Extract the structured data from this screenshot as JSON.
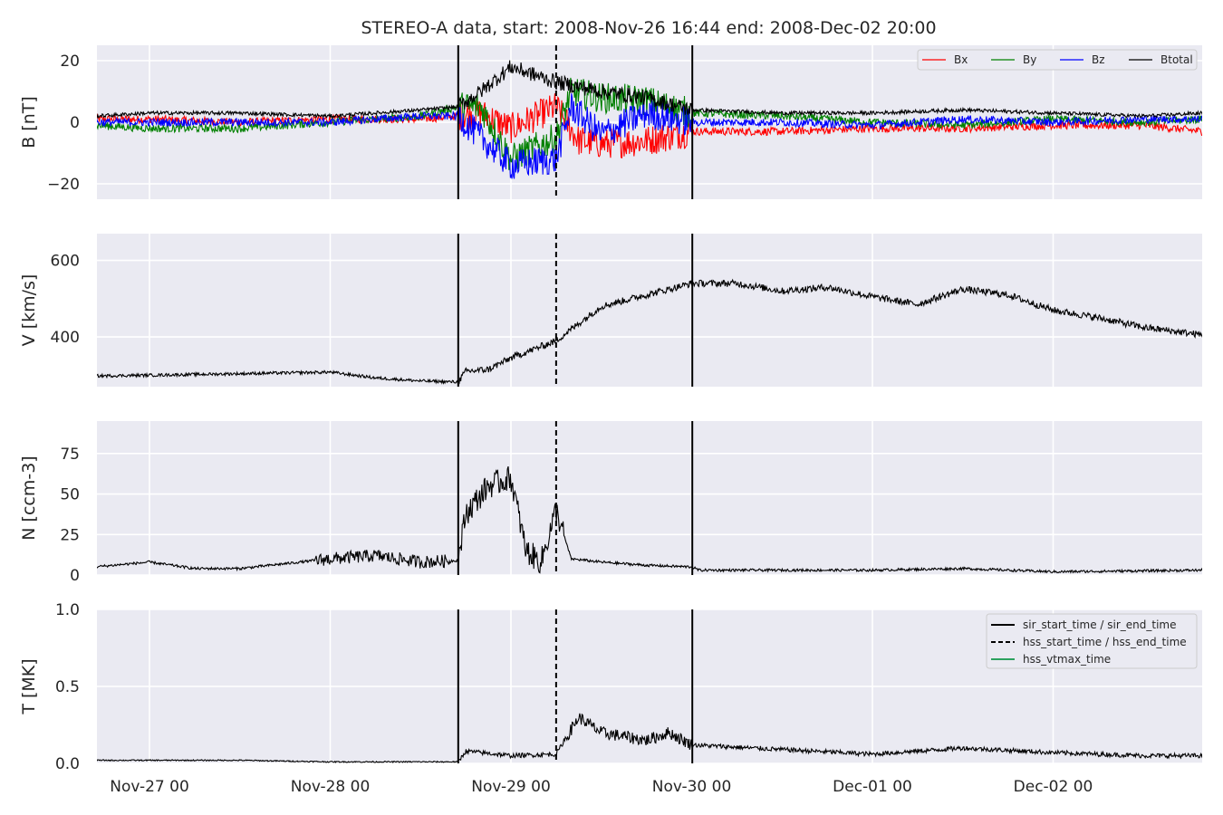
{
  "chart_data": {
    "type": "line",
    "title": "STEREO-A data, start: 2008-Nov-26 16:44  end: 2008-Dec-02 20:00",
    "time_range": [
      "2008-11-26 16:44",
      "2008-12-02 20:00"
    ],
    "x_tick_labels": [
      "Nov-27 00",
      "Nov-28 00",
      "Nov-29 00",
      "Nov-30 00",
      "Dec-01 00",
      "Dec-02 00"
    ],
    "x_tick_dates": [
      "2008-11-27 00:00",
      "2008-11-28 00:00",
      "2008-11-29 00:00",
      "2008-11-30 00:00",
      "2008-12-01 00:00",
      "2008-12-02 00:00"
    ],
    "event_lines": [
      {
        "label": "sir_start_time / sir_end_time",
        "style": "solid",
        "times": [
          "2008-11-28 17:00",
          "2008-11-30 00:05"
        ]
      },
      {
        "label": "hss_start_time / hss_end_time",
        "style": "dashed",
        "times": [
          "2008-11-29 06:00"
        ]
      },
      {
        "label": "hss_vtmax_time",
        "style": "solid",
        "color": "#2ca25f",
        "times": []
      }
    ],
    "panels": [
      {
        "ylabel": "B [nT]",
        "ylim": [
          -25,
          25
        ],
        "yticks": [
          20,
          0,
          -20
        ],
        "ytick_labels": [
          "20",
          "0",
          "−20"
        ],
        "legend_position": "top-right",
        "series": [
          {
            "name": "Bx",
            "color": "#ff0000",
            "points": [
              [
                "11-26 16:44",
                1
              ],
              [
                "11-27 00:00",
                1
              ],
              [
                "11-27 12:00",
                0
              ],
              [
                "11-28 00:00",
                1
              ],
              [
                "11-28 12:00",
                1
              ],
              [
                "11-28 17:00",
                2
              ],
              [
                "11-28 20:00",
                3
              ],
              [
                "11-29 00:00",
                -2
              ],
              [
                "11-29 06:00",
                5
              ],
              [
                "11-29 09:00",
                -6
              ],
              [
                "11-29 12:00",
                -7
              ],
              [
                "11-29 18:00",
                -6
              ],
              [
                "11-30 00:00",
                -3
              ],
              [
                "11-30 12:00",
                -3
              ],
              [
                "12-01 00:00",
                -2
              ],
              [
                "12-01 12:00",
                -2
              ],
              [
                "12-02 00:00",
                -1
              ],
              [
                "12-02 12:00",
                -1
              ],
              [
                "12-02 20:00",
                -3
              ]
            ]
          },
          {
            "name": "By",
            "color": "#008000",
            "points": [
              [
                "11-26 16:44",
                -1
              ],
              [
                "11-27 00:00",
                -2
              ],
              [
                "11-27 12:00",
                -2
              ],
              [
                "11-28 00:00",
                0
              ],
              [
                "11-28 12:00",
                2
              ],
              [
                "11-28 17:00",
                5
              ],
              [
                "11-28 20:00",
                5
              ],
              [
                "11-29 00:00",
                -12
              ],
              [
                "11-29 06:00",
                -5
              ],
              [
                "11-29 08:00",
                10
              ],
              [
                "11-29 12:00",
                8
              ],
              [
                "11-29 18:00",
                7
              ],
              [
                "11-30 00:00",
                3
              ],
              [
                "11-30 12:00",
                2
              ],
              [
                "12-01 00:00",
                0
              ],
              [
                "12-01 12:00",
                -1
              ],
              [
                "12-02 00:00",
                1
              ],
              [
                "12-02 12:00",
                0
              ],
              [
                "12-02 20:00",
                1
              ]
            ]
          },
          {
            "name": "Bz",
            "color": "#0000ff",
            "points": [
              [
                "11-26 16:44",
                0
              ],
              [
                "11-27 00:00",
                0
              ],
              [
                "11-27 12:00",
                0
              ],
              [
                "11-28 00:00",
                0
              ],
              [
                "11-28 12:00",
                2
              ],
              [
                "11-28 17:00",
                2
              ],
              [
                "11-28 20:00",
                -5
              ],
              [
                "11-29 00:00",
                -14
              ],
              [
                "11-29 06:00",
                -12
              ],
              [
                "11-29 08:00",
                5
              ],
              [
                "11-29 12:00",
                -4
              ],
              [
                "11-29 18:00",
                3
              ],
              [
                "11-30 00:00",
                0
              ],
              [
                "11-30 12:00",
                0
              ],
              [
                "12-01 00:00",
                -1
              ],
              [
                "12-01 12:00",
                1
              ],
              [
                "12-02 00:00",
                0
              ],
              [
                "12-02 12:00",
                1
              ],
              [
                "12-02 20:00",
                1
              ]
            ]
          },
          {
            "name": "Btotal",
            "color": "#000000",
            "points": [
              [
                "11-26 16:44",
                2
              ],
              [
                "11-27 00:00",
                3
              ],
              [
                "11-27 12:00",
                3
              ],
              [
                "11-28 00:00",
                2
              ],
              [
                "11-28 12:00",
                4
              ],
              [
                "11-28 17:00",
                5
              ],
              [
                "11-28 20:00",
                10
              ],
              [
                "11-29 00:00",
                18
              ],
              [
                "11-29 06:00",
                13
              ],
              [
                "11-29 08:00",
                12
              ],
              [
                "11-29 12:00",
                10
              ],
              [
                "11-29 18:00",
                8
              ],
              [
                "11-30 00:00",
                4
              ],
              [
                "11-30 12:00",
                3
              ],
              [
                "12-01 00:00",
                3
              ],
              [
                "12-01 12:00",
                4
              ],
              [
                "12-02 00:00",
                3
              ],
              [
                "12-02 12:00",
                2
              ],
              [
                "12-02 20:00",
                3
              ]
            ]
          }
        ]
      },
      {
        "ylabel": "V [km/s]",
        "ylim": [
          270,
          670
        ],
        "yticks": [
          600,
          400
        ],
        "ytick_labels": [
          "600",
          "400"
        ],
        "series": [
          {
            "name": "",
            "color": "#000000",
            "points": [
              [
                "11-26 16:44",
                298
              ],
              [
                "11-27 00:00",
                300
              ],
              [
                "11-27 12:00",
                304
              ],
              [
                "11-28 00:00",
                308
              ],
              [
                "11-28 06:00",
                293
              ],
              [
                "11-28 12:00",
                285
              ],
              [
                "11-28 17:00",
                282
              ],
              [
                "11-28 18:00",
                310
              ],
              [
                "11-28 21:00",
                315
              ],
              [
                "11-29 00:00",
                345
              ],
              [
                "11-29 06:00",
                390
              ],
              [
                "11-29 08:00",
                420
              ],
              [
                "11-29 12:00",
                480
              ],
              [
                "11-29 18:00",
                510
              ],
              [
                "11-30 00:00",
                540
              ],
              [
                "11-30 06:00",
                540
              ],
              [
                "11-30 12:00",
                520
              ],
              [
                "11-30 18:00",
                530
              ],
              [
                "12-01 00:00",
                505
              ],
              [
                "12-01 06:00",
                485
              ],
              [
                "12-01 12:00",
                525
              ],
              [
                "12-01 18:00",
                510
              ],
              [
                "12-02 00:00",
                470
              ],
              [
                "12-02 06:00",
                450
              ],
              [
                "12-02 12:00",
                425
              ],
              [
                "12-02 20:00",
                405
              ]
            ]
          }
        ]
      },
      {
        "ylabel": "N [ccm-3]",
        "ylim": [
          0,
          95
        ],
        "yticks": [
          75,
          50,
          25,
          0
        ],
        "ytick_labels": [
          "75",
          "50",
          "25",
          "0"
        ],
        "series": [
          {
            "name": "",
            "color": "#000000",
            "points": [
              [
                "11-26 16:44",
                5
              ],
              [
                "11-27 00:00",
                8
              ],
              [
                "11-27 06:00",
                4
              ],
              [
                "11-27 12:00",
                4
              ],
              [
                "11-28 00:00",
                10
              ],
              [
                "11-28 06:00",
                12
              ],
              [
                "11-28 12:00",
                8
              ],
              [
                "11-28 17:00",
                9
              ],
              [
                "11-28 18:00",
                38
              ],
              [
                "11-28 21:00",
                55
              ],
              [
                "11-29 00:00",
                60
              ],
              [
                "11-29 02:00",
                15
              ],
              [
                "11-29 04:00",
                8
              ],
              [
                "11-29 06:00",
                40
              ],
              [
                "11-29 08:00",
                10
              ],
              [
                "11-29 12:00",
                8
              ],
              [
                "11-29 18:00",
                6
              ],
              [
                "11-30 00:00",
                5
              ],
              [
                "11-30 01:00",
                3
              ],
              [
                "12-01 00:00",
                3
              ],
              [
                "12-01 12:00",
                4
              ],
              [
                "12-02 00:00",
                2
              ],
              [
                "12-02 20:00",
                3
              ]
            ]
          }
        ]
      },
      {
        "ylabel": "T [MK]",
        "ylim": [
          0,
          1.0
        ],
        "yticks": [
          1.0,
          0.5,
          0.0
        ],
        "ytick_labels": [
          "1.0",
          "0.5",
          "0.0"
        ],
        "legend_position": "top-right",
        "series": [
          {
            "name": "",
            "color": "#000000",
            "points": [
              [
                "11-26 16:44",
                0.02
              ],
              [
                "11-27 00:00",
                0.02
              ],
              [
                "11-27 12:00",
                0.02
              ],
              [
                "11-28 00:00",
                0.01
              ],
              [
                "11-28 12:00",
                0.01
              ],
              [
                "11-28 17:00",
                0.01
              ],
              [
                "11-28 18:00",
                0.08
              ],
              [
                "11-29 00:00",
                0.05
              ],
              [
                "11-29 06:00",
                0.06
              ],
              [
                "11-29 09:00",
                0.3
              ],
              [
                "11-29 12:00",
                0.2
              ],
              [
                "11-29 18:00",
                0.15
              ],
              [
                "11-29 21:00",
                0.2
              ],
              [
                "11-30 00:00",
                0.12
              ],
              [
                "11-30 12:00",
                0.09
              ],
              [
                "12-01 00:00",
                0.06
              ],
              [
                "12-01 12:00",
                0.1
              ],
              [
                "12-02 00:00",
                0.07
              ],
              [
                "12-02 12:00",
                0.05
              ],
              [
                "12-02 20:00",
                0.05
              ]
            ]
          }
        ]
      }
    ]
  }
}
